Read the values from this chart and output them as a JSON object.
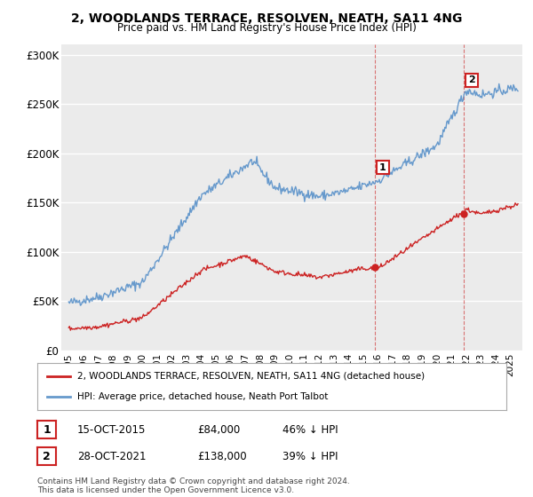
{
  "title": "2, WOODLANDS TERRACE, RESOLVEN, NEATH, SA11 4NG",
  "subtitle": "Price paid vs. HM Land Registry's House Price Index (HPI)",
  "ylim": [
    0,
    310000
  ],
  "yticks": [
    0,
    50000,
    100000,
    150000,
    200000,
    250000,
    300000
  ],
  "ytick_labels": [
    "£0",
    "£50K",
    "£100K",
    "£150K",
    "£200K",
    "£250K",
    "£300K"
  ],
  "background_color": "#ffffff",
  "plot_bg_color": "#ebebeb",
  "grid_color": "#ffffff",
  "hpi_color": "#6699cc",
  "price_color": "#cc2222",
  "sale1_date": "15-OCT-2015",
  "sale1_price": 84000,
  "sale1_pct": "46%",
  "sale2_date": "28-OCT-2021",
  "sale2_price": 138000,
  "sale2_pct": "39%",
  "legend_label1": "2, WOODLANDS TERRACE, RESOLVEN, NEATH, SA11 4NG (detached house)",
  "legend_label2": "HPI: Average price, detached house, Neath Port Talbot",
  "footer": "Contains HM Land Registry data © Crown copyright and database right 2024.\nThis data is licensed under the Open Government Licence v3.0.",
  "sale1_x": 2015.79,
  "sale2_x": 2021.83,
  "xlim_left": 1994.5,
  "xlim_right": 2025.8
}
